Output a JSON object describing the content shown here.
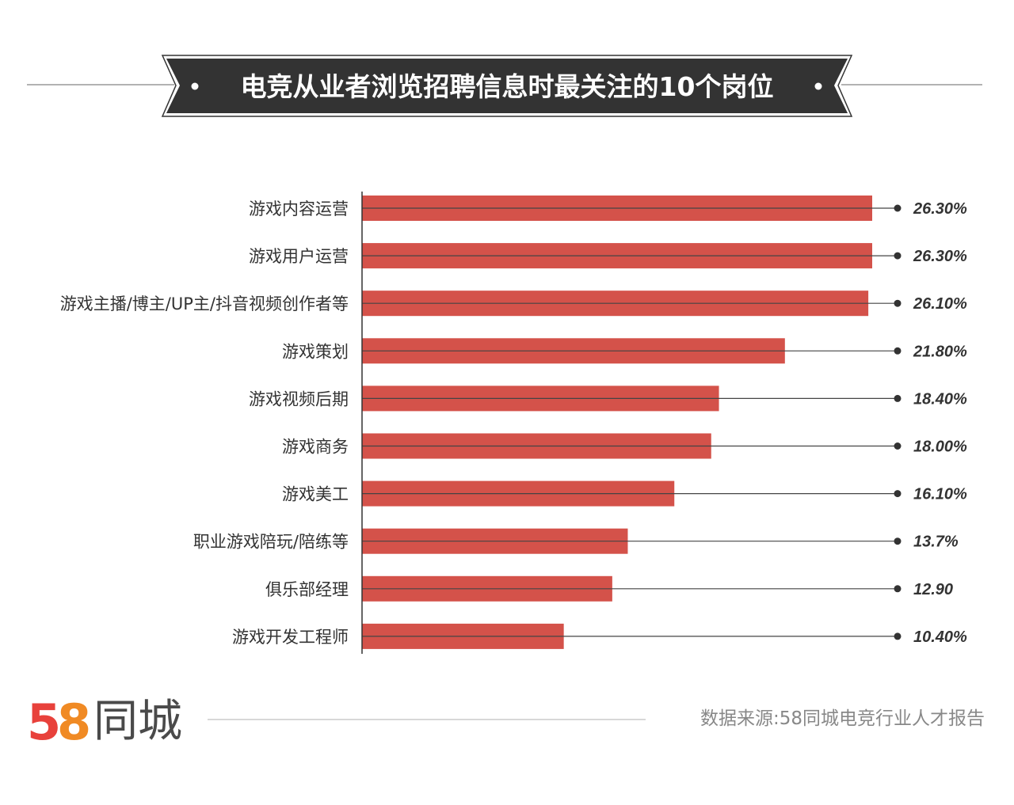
{
  "chart_data": {
    "type": "bar",
    "orientation": "horizontal",
    "title": "电竞从业者浏览招聘信息时最关注的10个岗位",
    "categories": [
      "游戏内容运营",
      "游戏用户运营",
      "游戏主播/博主/UP主/抖音视频创作者等",
      "游戏策划",
      "游戏视频后期",
      "游戏商务",
      "游戏美工",
      "职业游戏陪玩/陪练等",
      "俱乐部经理",
      "游戏开发工程师"
    ],
    "values": [
      26.3,
      26.3,
      26.1,
      21.8,
      18.4,
      18.0,
      16.1,
      13.7,
      12.9,
      10.4
    ],
    "data_labels": [
      "26.30%",
      "26.30%",
      "26.10%",
      "21.80%",
      "18.40%",
      "18.00%",
      "16.10%",
      "13.7%",
      "12.90",
      "10.40%"
    ],
    "unit": "%",
    "xlim": [
      0,
      26.3
    ],
    "grid": false,
    "bar_color": "#d4524a"
  },
  "footer": {
    "logo_text": "58同城",
    "source": "数据来源:58同城电竞行业人才报告"
  }
}
